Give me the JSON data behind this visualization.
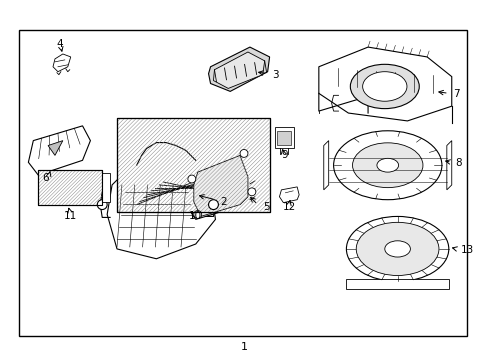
{
  "background_color": "#ffffff",
  "border_color": "#000000",
  "line_color": "#000000",
  "label_color": "#000000",
  "fig_width": 4.89,
  "fig_height": 3.6,
  "dpi": 100,
  "bottom_label": "1"
}
